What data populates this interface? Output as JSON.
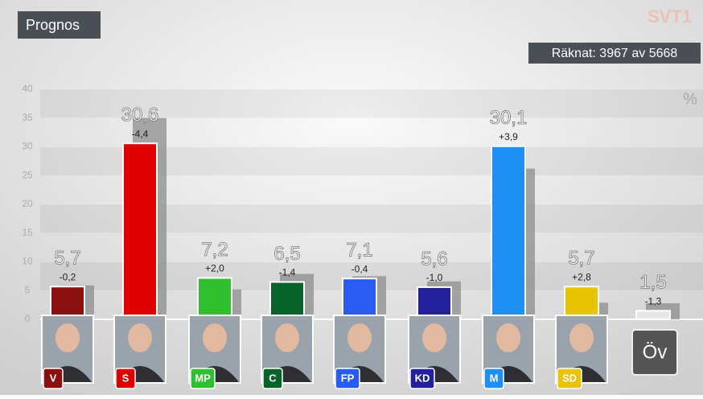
{
  "chart_data": {
    "type": "bar",
    "title": "Prognos",
    "subtitle": "Räknat: 3967 av 5668",
    "brand": "SVT1",
    "unit": "%",
    "categories": [
      "V",
      "S",
      "MP",
      "C",
      "FP",
      "KD",
      "M",
      "SD",
      "Öv"
    ],
    "values": [
      5.7,
      30.6,
      7.2,
      6.5,
      7.1,
      5.6,
      30.1,
      5.7,
      1.5
    ],
    "value_labels": [
      "5,7",
      "30,6",
      "7,2",
      "6,5",
      "7,1",
      "5,6",
      "30,1",
      "5,7",
      "1,5"
    ],
    "changes": [
      -0.2,
      -4.4,
      2.0,
      -1.4,
      -0.4,
      -1.0,
      3.9,
      2.8,
      -1.3
    ],
    "change_labels": [
      "-0,2",
      "-4,4",
      "+2,0",
      "-1,4",
      "-0,4",
      "-1,0",
      "+3,9",
      "+2,8",
      "-1,3"
    ],
    "previous_values": [
      5.9,
      35.0,
      5.2,
      7.9,
      7.5,
      6.6,
      26.2,
      2.9,
      2.8
    ],
    "colors": [
      "#8a1010",
      "#e00000",
      "#2fbf2f",
      "#07632a",
      "#2a5cf5",
      "#22209a",
      "#1e90f5",
      "#e8c400",
      "#e6e6e6"
    ],
    "previous_color": "#8c8c8c",
    "ylim": [
      0,
      40
    ],
    "yticks": [
      0,
      5,
      10,
      15,
      20,
      25,
      30,
      35,
      40
    ],
    "grid": true
  }
}
